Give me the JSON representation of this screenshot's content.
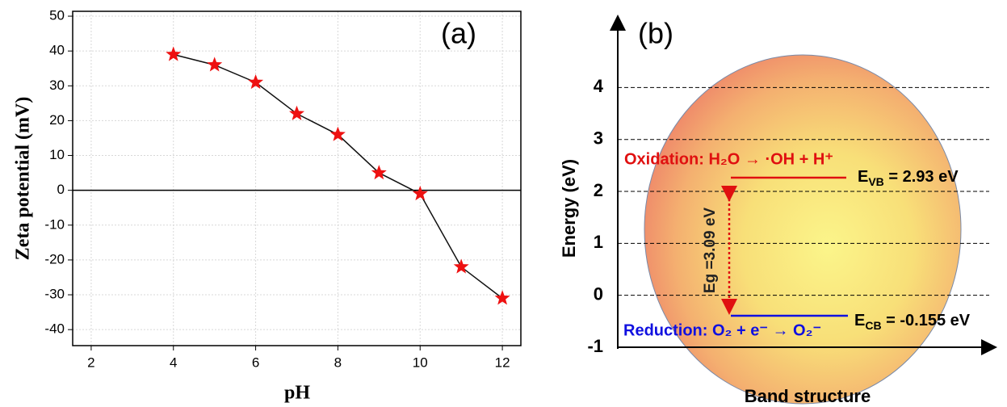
{
  "chart_data": [
    {
      "type": "line",
      "title": "(a)",
      "x_label": "pH",
      "y_label": "Zeta potential (mV)",
      "x": [
        4,
        5,
        6,
        7,
        8,
        9,
        10,
        11,
        12
      ],
      "values": [
        39,
        36,
        31,
        22,
        16,
        5,
        -1,
        -22,
        -31
      ],
      "color": "#ee1111",
      "line_color": "#111111",
      "xlim": [
        1.55,
        12.45
      ],
      "ylim": [
        -44.6,
        51.4
      ],
      "xticks": [
        2,
        4,
        6,
        8,
        10,
        12
      ],
      "yticks": [
        -40,
        -30,
        -20,
        -10,
        0,
        10,
        20,
        30,
        40,
        50
      ],
      "grid": true,
      "zero_line": true
    },
    {
      "type": "band",
      "title": "(b)",
      "y_label": "Energy (eV)",
      "x_label": "Band structure",
      "ylim": [
        -1,
        5.25
      ],
      "yticks": [
        -1,
        0,
        1,
        2,
        3,
        4
      ],
      "grid": true,
      "oxidation": "Oxidation: H₂O → ·OH + H⁺",
      "reduction": "Reduction: O₂ + e⁻ → O₂⁻",
      "vb_label": [
        "E",
        "VB",
        " = 2.93 eV"
      ],
      "cb_label": [
        "E",
        "CB",
        " = -0.155 eV"
      ],
      "gap_label": "Eg =3.09 eV",
      "oxidation_color": "#e01010",
      "reduction_color": "#1010e0"
    }
  ]
}
